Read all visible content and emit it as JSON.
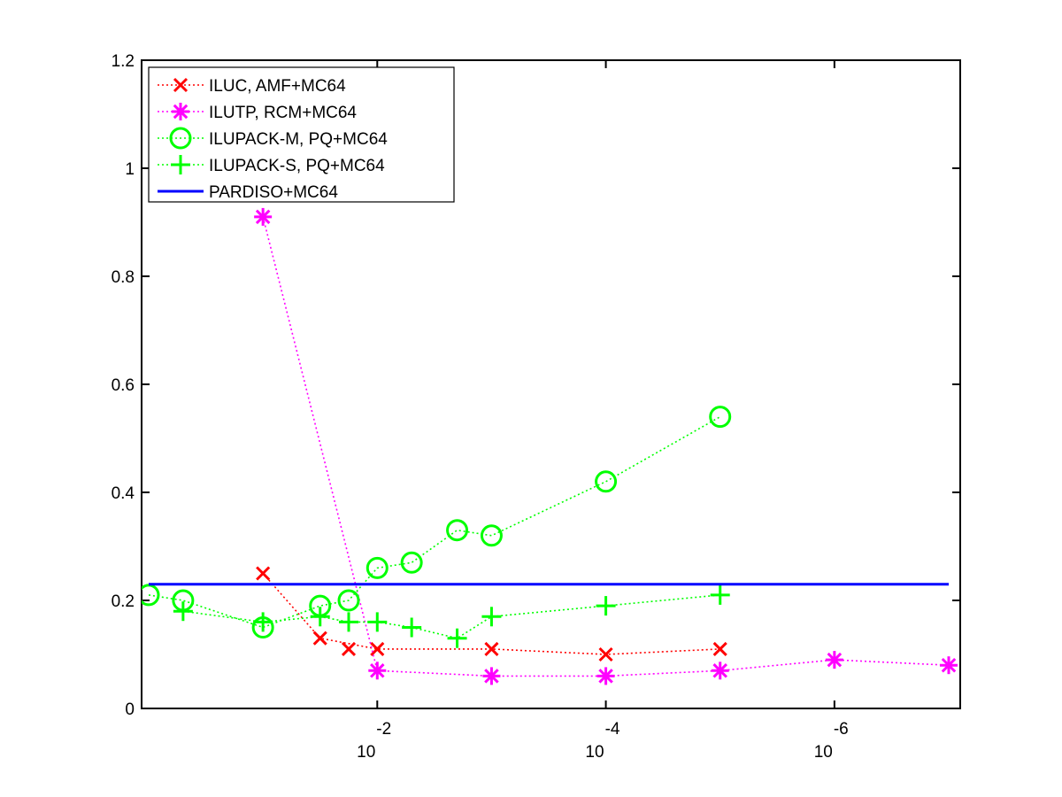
{
  "chart_data": {
    "type": "line",
    "xscale": "log-reversed",
    "x_ticks": [
      {
        "base": "10",
        "exponent": "-2",
        "value": 0.01
      },
      {
        "base": "10",
        "exponent": "-4",
        "value": 0.0001
      },
      {
        "base": "10",
        "exponent": "-6",
        "value": 1e-06
      }
    ],
    "y_ticks": [
      "0",
      "0.2",
      "0.4",
      "0.6",
      "0.8",
      "1",
      "1.2"
    ],
    "xlim": [
      1.0,
      1e-07
    ],
    "ylim": [
      0,
      1.2
    ],
    "grid": false,
    "legend_position": "top-left",
    "series": [
      {
        "name": "ILUC, AMF+MC64",
        "color": "#ff0000",
        "marker": "x",
        "linestyle": "dotted",
        "x": [
          0.1,
          0.03162,
          0.01,
          0.001,
          0.0001,
          1e-05
        ],
        "y": [
          0.25,
          0.13,
          0.11,
          0.11,
          0.1,
          0.11
        ],
        "extra": [
          [
            0.01778,
            0.11
          ]
        ]
      },
      {
        "name": "ILUTP, RCM+MC64",
        "color": "#ff00ff",
        "marker": "asterisk",
        "linestyle": "dotted",
        "x": [
          0.1,
          0.01,
          0.001,
          0.0001,
          1e-05,
          1e-06,
          1e-07
        ],
        "y": [
          0.91,
          0.07,
          0.06,
          0.06,
          0.07,
          0.09,
          0.08
        ]
      },
      {
        "name": "ILUPACK-M, PQ+MC64",
        "color": "#00ff00",
        "marker": "circle",
        "linestyle": "dotted",
        "x": [
          1.0,
          0.5,
          0.1,
          0.03162,
          0.01778,
          0.01,
          0.005,
          0.002,
          0.001,
          0.0001,
          1e-05
        ],
        "y": [
          0.21,
          0.2,
          0.15,
          0.19,
          0.2,
          0.26,
          0.27,
          0.33,
          0.32,
          0.42,
          0.54
        ]
      },
      {
        "name": "ILUPACK-S, PQ+MC64",
        "color": "#00ff00",
        "marker": "plus",
        "linestyle": "dotted",
        "x": [
          0.5,
          0.1,
          0.03162,
          0.01778,
          0.01,
          0.005,
          0.002,
          0.001,
          0.0001,
          1e-05
        ],
        "y": [
          0.18,
          0.16,
          0.17,
          0.16,
          0.16,
          0.15,
          0.13,
          0.17,
          0.19,
          0.21
        ]
      },
      {
        "name": "PARDISO+MC64",
        "color": "#0000ff",
        "marker": "none",
        "linestyle": "solid",
        "x": [
          1.0,
          1e-07
        ],
        "y": [
          0.23,
          0.23
        ]
      }
    ]
  }
}
